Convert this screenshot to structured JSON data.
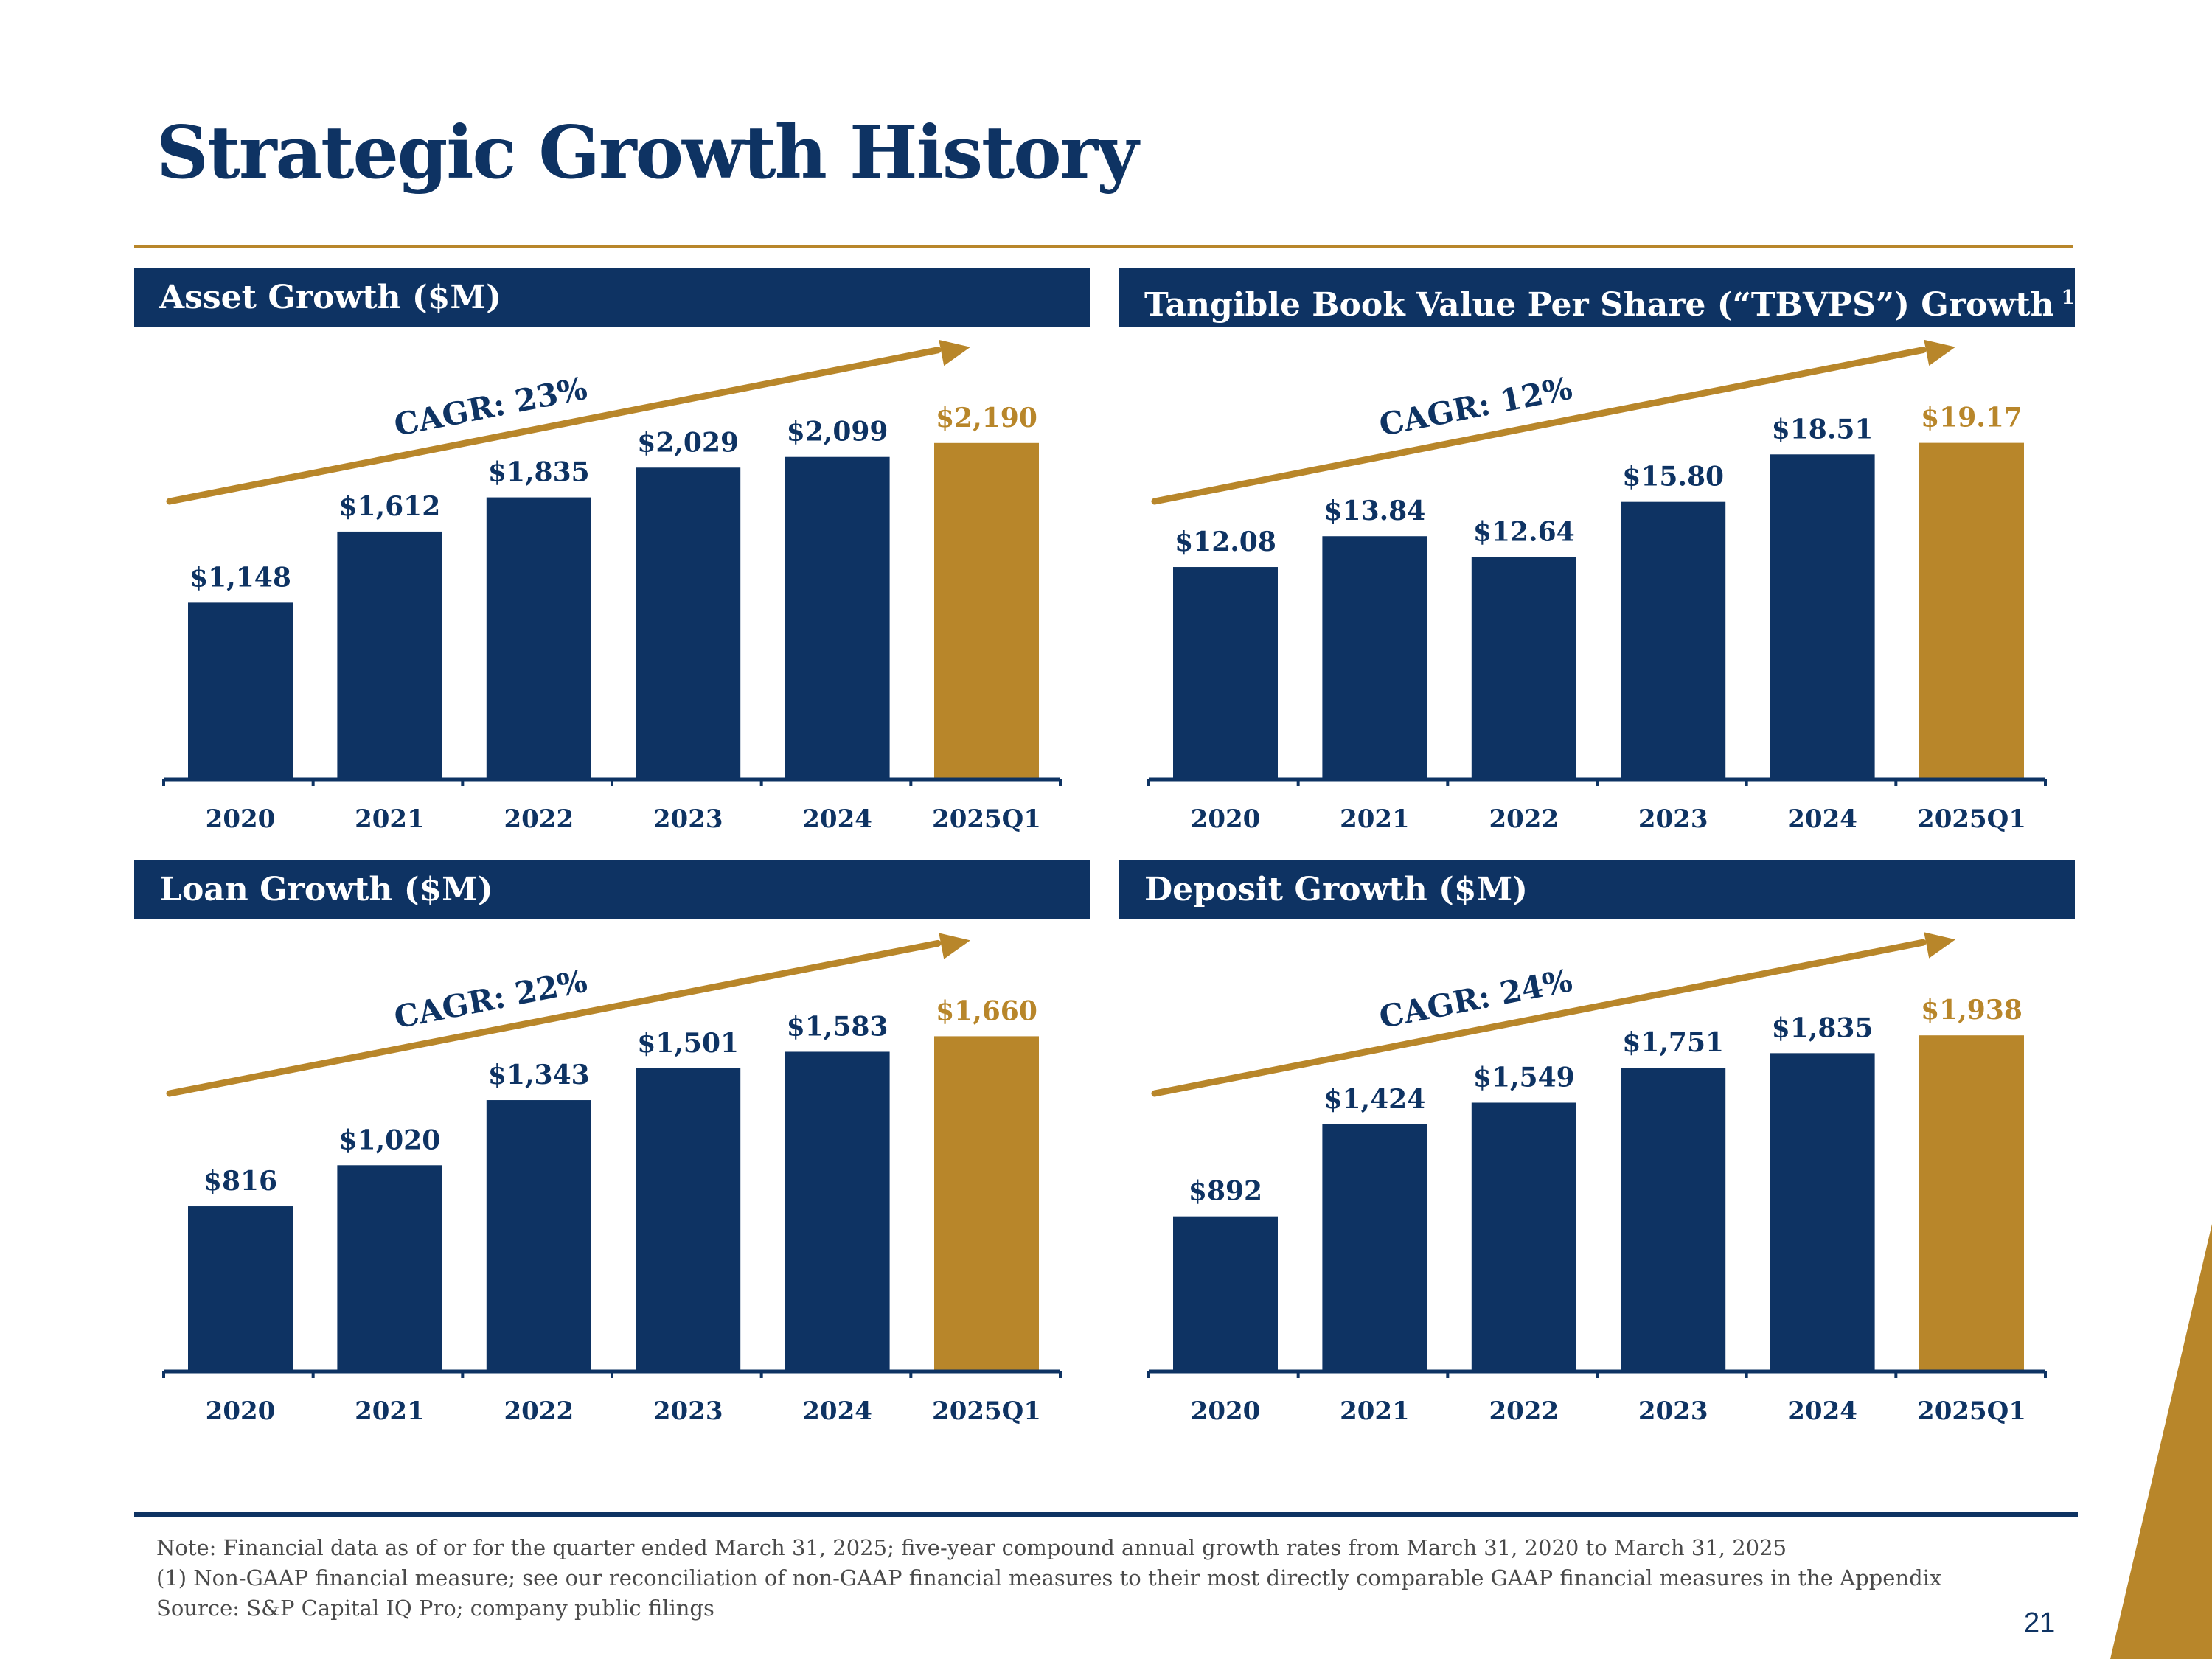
{
  "page": {
    "title": "Strategic Growth History",
    "page_number": "21",
    "notes": [
      "Note:  Financial data as of or for the quarter ended March 31, 2025; five-year compound annual growth rates from March  31, 2020 to March 31, 2025",
      "(1)    Non-GAAP financial measure; see our reconciliation of non-GAAP financial measures to their most directly comparable GAAP financial measures in the Appendix",
      "Source:  S&P Capital IQ Pro; company public filings"
    ]
  },
  "colors": {
    "navy": "#0e3363",
    "gold": "#b8862a",
    "white": "#ffffff"
  },
  "panels": {
    "asset": {
      "header": "Asset Growth ($M)",
      "footnote": ""
    },
    "tbvps": {
      "header": "Tangible Book Value Per Share (“TBVPS”) Growth",
      "footnote": "1"
    },
    "loan": {
      "header": "Loan Growth ($M)",
      "footnote": ""
    },
    "deposit": {
      "header": "Deposit Growth ($M)",
      "footnote": ""
    }
  },
  "chart_data": [
    {
      "id": "asset",
      "type": "bar",
      "title": "Asset Growth ($M)",
      "categories": [
        "2020",
        "2021",
        "2022",
        "2023",
        "2024",
        "2025Q1"
      ],
      "values": [
        1148,
        1612,
        1835,
        2029,
        2099,
        2190
      ],
      "labels": [
        "$1,148",
        "$1,612",
        "$1,835",
        "$2,029",
        "$2,099",
        "$2,190"
      ],
      "highlight_index": 5,
      "annotation": "CAGR: 23%",
      "ylim": [
        0,
        2800
      ]
    },
    {
      "id": "tbvps",
      "type": "bar",
      "title": "Tangible Book Value Per Share (“TBVPS”) Growth",
      "categories": [
        "2020",
        "2021",
        "2022",
        "2023",
        "2024",
        "2025Q1"
      ],
      "values": [
        12.08,
        13.84,
        12.64,
        15.8,
        18.51,
        19.17
      ],
      "labels": [
        "$12.08",
        "$13.84",
        "$12.64",
        "$15.80",
        "$18.51",
        "$19.17"
      ],
      "highlight_index": 5,
      "annotation": "CAGR: 12%",
      "ylim": [
        0,
        24.5
      ]
    },
    {
      "id": "loan",
      "type": "bar",
      "title": "Loan Growth ($M)",
      "categories": [
        "2020",
        "2021",
        "2022",
        "2023",
        "2024",
        "2025Q1"
      ],
      "values": [
        816,
        1020,
        1343,
        1501,
        1583,
        1660
      ],
      "labels": [
        "$816",
        "$1,020",
        "$1,343",
        "$1,501",
        "$1,583",
        "$1,660"
      ],
      "highlight_index": 5,
      "annotation": "CAGR: 22%",
      "ylim": [
        0,
        2130
      ]
    },
    {
      "id": "deposit",
      "type": "bar",
      "title": "Deposit Growth ($M)",
      "categories": [
        "2020",
        "2021",
        "2022",
        "2023",
        "2024",
        "2025Q1"
      ],
      "values": [
        892,
        1424,
        1549,
        1751,
        1835,
        1938
      ],
      "labels": [
        "$892",
        "$1,424",
        "$1,549",
        "$1,751",
        "$1,835",
        "$1,938"
      ],
      "highlight_index": 5,
      "annotation": "CAGR: 24%",
      "ylim": [
        0,
        2480
      ]
    }
  ]
}
